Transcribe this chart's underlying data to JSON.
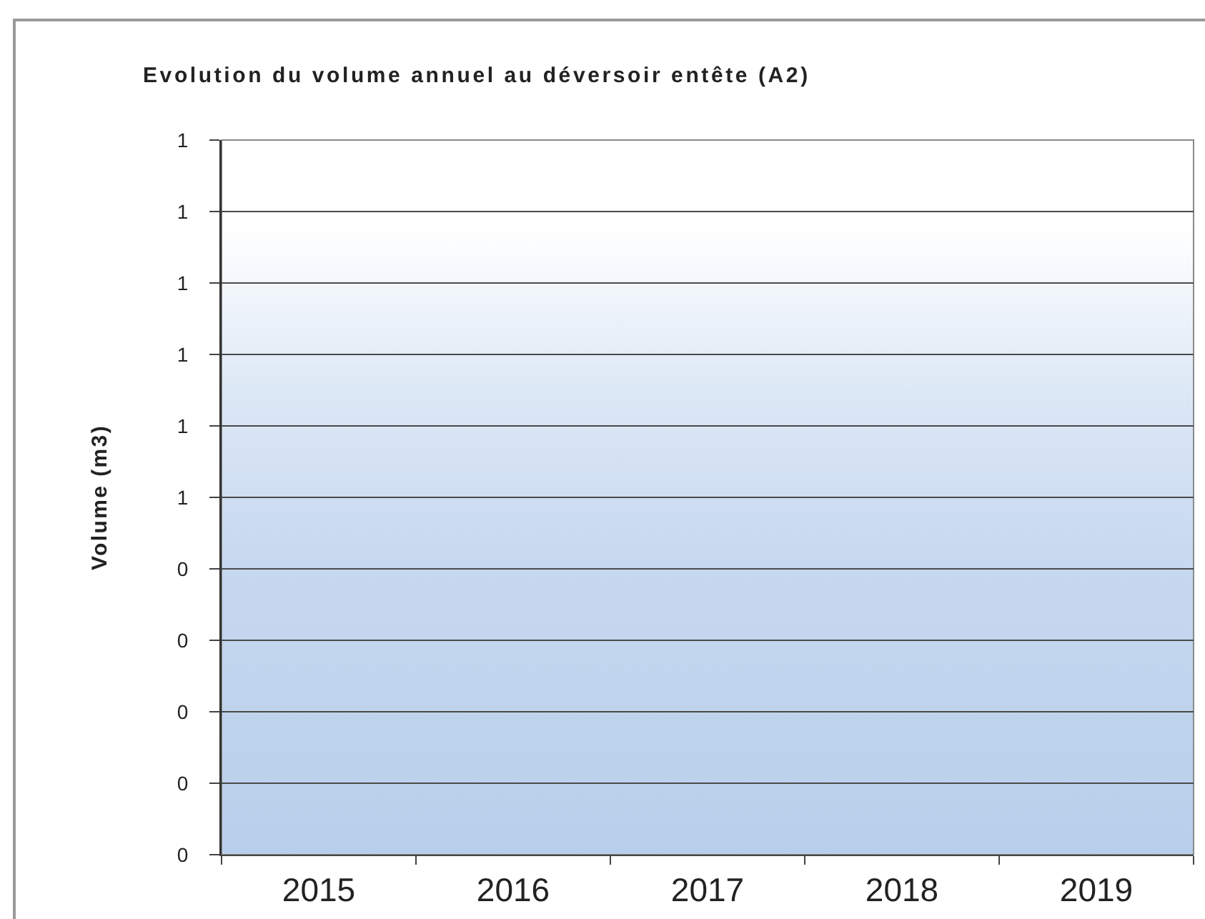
{
  "chart_data": {
    "type": "bar",
    "title": "Evolution du volume annuel au déversoir entête (A2)",
    "ylabel": "Volume (m3)",
    "categories": [
      "2015",
      "2016",
      "2017",
      "2018",
      "2019"
    ],
    "values": [
      null,
      null,
      null,
      null,
      null
    ],
    "ylim": [
      0,
      1
    ],
    "yticks": [
      0,
      {
        "value": 0.1,
        "label": "0"
      },
      {
        "value": 0.2,
        "label": "0"
      },
      {
        "value": 0.3,
        "label": "0"
      },
      {
        "value": 0.4,
        "label": "0"
      },
      {
        "value": 0.5,
        "label": "1"
      },
      {
        "value": 0.6,
        "label": "1"
      },
      {
        "value": 0.7,
        "label": "1"
      },
      {
        "value": 0.8,
        "label": "1"
      },
      {
        "value": 0.9,
        "label": "1"
      },
      1
    ],
    "grid": "y"
  }
}
